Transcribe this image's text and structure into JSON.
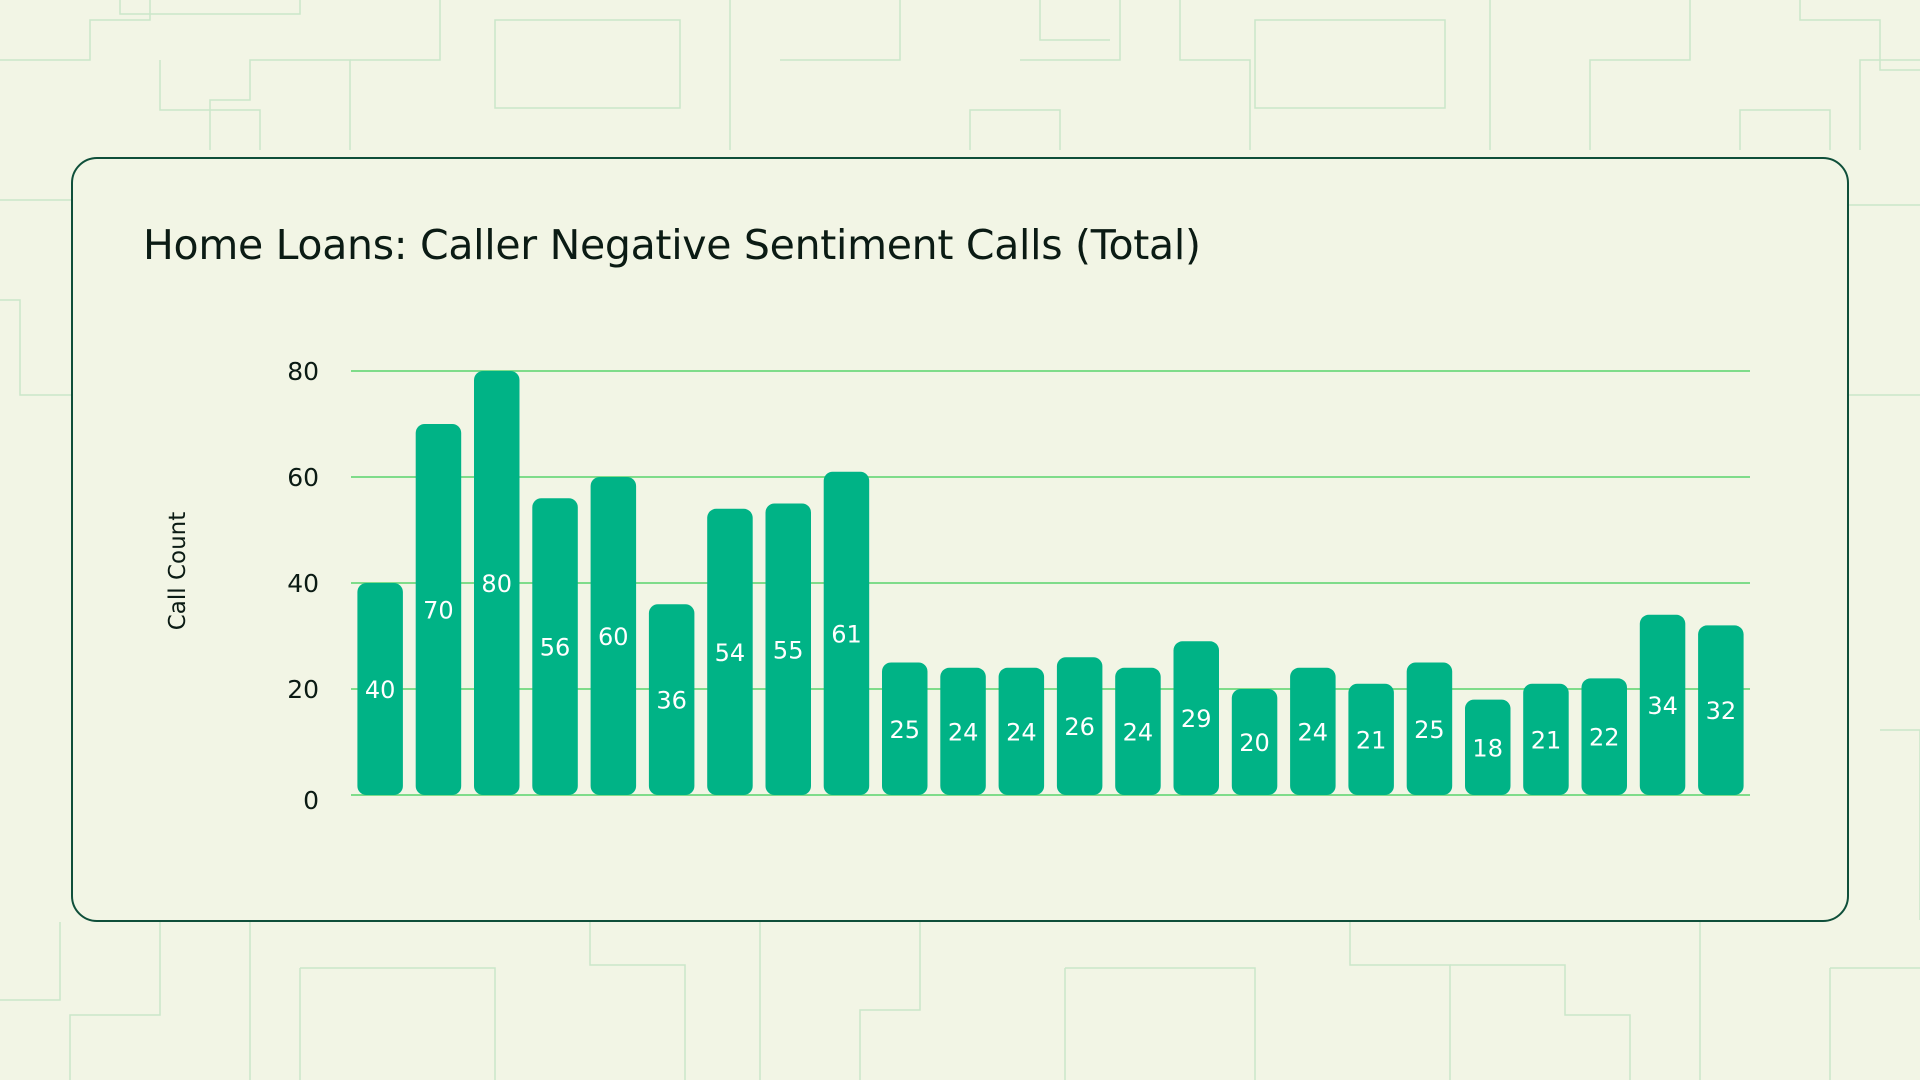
{
  "colors": {
    "background": "#f2f5e5",
    "pattern_line": "#c9e7c9",
    "card_border": "#0f4f3a",
    "bar": "#00b386",
    "gridline": "#7fdc8a",
    "text": "#0b1b14",
    "bar_label": "#ffffff"
  },
  "chart_data": {
    "type": "bar",
    "title": "Home Loans: Caller Negative Sentiment Calls (Total)",
    "xlabel": "",
    "ylabel": "Call Count",
    "ylim": [
      0,
      80
    ],
    "yticks": [
      0,
      20,
      40,
      60,
      80
    ],
    "grid": true,
    "legend": "none",
    "values": [
      40,
      70,
      80,
      56,
      60,
      36,
      54,
      55,
      61,
      25,
      24,
      24,
      26,
      24,
      29,
      20,
      24,
      21,
      25,
      18,
      21,
      22,
      34,
      32
    ],
    "data_labels": [
      "40",
      "70",
      "80",
      "56",
      "60",
      "36",
      "54",
      "55",
      "61",
      "25",
      "24",
      "24",
      "26",
      "24",
      "29",
      "20",
      "24",
      "21",
      "25",
      "18",
      "21",
      "22",
      "34",
      "32"
    ]
  }
}
